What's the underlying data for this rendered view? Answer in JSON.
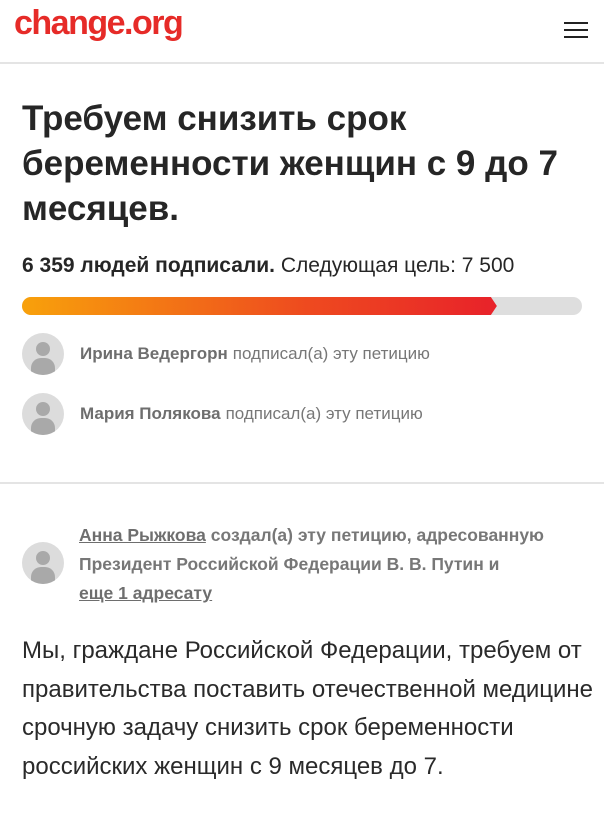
{
  "header": {
    "logo": "change.org",
    "menu_icon": "hamburger-icon"
  },
  "petition": {
    "title": "Требуем снизить срок беременности женщин с 9 до 7 месяцев.",
    "signed_count": "6 359 людей подписали.",
    "next_goal": "Следующая цель: 7 500",
    "progress": 0.848,
    "progress_colors": {
      "start": "#f8a10b",
      "end": "#e8222a",
      "track": "#dedede"
    }
  },
  "signers": [
    {
      "name": "Ирина Ведергорн",
      "action": "подписал(а) эту петицию"
    },
    {
      "name": "Мария Полякова",
      "action": "подписал(а) эту петицию"
    }
  ],
  "creator": {
    "name": "Анна Рыжкова",
    "text": "создал(а) эту петицию, адресованную Президент Российской Федерации В. В. Путин и",
    "more_link": "еще 1 адресату"
  },
  "body": "Мы, граждане Российской Федерации, требуем от правительства поставить отечественной медицине срочную задачу снизить срок беременности российских женщин с 9 месяцев до 7.",
  "brand_color": "#e62b28"
}
